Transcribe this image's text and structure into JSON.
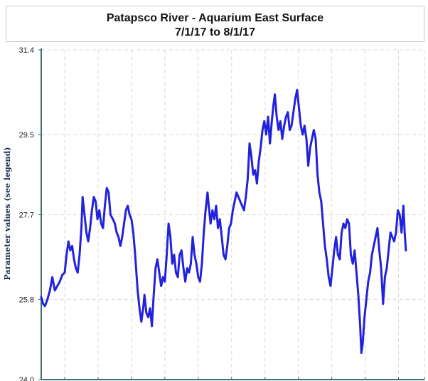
{
  "chart_data": {
    "type": "line",
    "title": "Patapsco River - Aquarium East Surface",
    "subtitle": "7/1/17 to 8/1/17",
    "xlabel": "",
    "ylabel": "Parameter values (see legend)",
    "ylim": [
      24.0,
      31.4
    ],
    "yticks": [
      {
        "value": 24.0,
        "label": "24.0"
      },
      {
        "value": 25.8,
        "label": "25.8"
      },
      {
        "value": 27.7,
        "label": "27.7"
      },
      {
        "value": 29.5,
        "label": "29.5"
      },
      {
        "value": 31.4,
        "label": "31.4"
      }
    ],
    "xlim": [
      0,
      31
    ],
    "x_gridlines": [
      1.9,
      4.6,
      7.3,
      10.0,
      12.7,
      15.4,
      18.1,
      20.8,
      23.5,
      26.2,
      28.9,
      31.0
    ],
    "grid": true,
    "series": [
      {
        "name": "Surface",
        "color": "#2222dd",
        "points": [
          [
            0.0,
            25.85
          ],
          [
            0.15,
            25.7
          ],
          [
            0.3,
            25.65
          ],
          [
            0.5,
            25.8
          ],
          [
            0.7,
            26.0
          ],
          [
            0.9,
            26.3
          ],
          [
            1.1,
            26.0
          ],
          [
            1.3,
            26.1
          ],
          [
            1.5,
            26.2
          ],
          [
            1.7,
            26.35
          ],
          [
            1.9,
            26.4
          ],
          [
            2.05,
            26.8
          ],
          [
            2.2,
            27.1
          ],
          [
            2.35,
            26.9
          ],
          [
            2.5,
            27.0
          ],
          [
            2.65,
            26.7
          ],
          [
            2.8,
            26.5
          ],
          [
            2.95,
            26.4
          ],
          [
            3.1,
            26.8
          ],
          [
            3.25,
            27.4
          ],
          [
            3.35,
            28.1
          ],
          [
            3.5,
            27.7
          ],
          [
            3.65,
            27.3
          ],
          [
            3.8,
            27.1
          ],
          [
            3.95,
            27.4
          ],
          [
            4.1,
            27.8
          ],
          [
            4.25,
            28.1
          ],
          [
            4.4,
            28.0
          ],
          [
            4.55,
            27.6
          ],
          [
            4.7,
            27.8
          ],
          [
            4.85,
            27.5
          ],
          [
            5.0,
            27.4
          ],
          [
            5.15,
            27.9
          ],
          [
            5.3,
            28.3
          ],
          [
            5.45,
            28.2
          ],
          [
            5.6,
            27.7
          ],
          [
            5.8,
            27.6
          ],
          [
            5.95,
            27.5
          ],
          [
            6.1,
            27.3
          ],
          [
            6.25,
            27.2
          ],
          [
            6.4,
            27.0
          ],
          [
            6.55,
            27.2
          ],
          [
            6.7,
            27.5
          ],
          [
            6.85,
            27.8
          ],
          [
            7.0,
            27.9
          ],
          [
            7.15,
            27.7
          ],
          [
            7.3,
            27.6
          ],
          [
            7.45,
            27.3
          ],
          [
            7.6,
            26.8
          ],
          [
            7.8,
            26.0
          ],
          [
            7.95,
            25.6
          ],
          [
            8.1,
            25.3
          ],
          [
            8.25,
            25.6
          ],
          [
            8.35,
            25.9
          ],
          [
            8.5,
            25.5
          ],
          [
            8.65,
            25.4
          ],
          [
            8.8,
            25.6
          ],
          [
            8.95,
            25.2
          ],
          [
            9.1,
            25.9
          ],
          [
            9.25,
            26.5
          ],
          [
            9.4,
            26.7
          ],
          [
            9.55,
            26.4
          ],
          [
            9.7,
            26.1
          ],
          [
            9.85,
            26.3
          ],
          [
            10.0,
            26.2
          ],
          [
            10.15,
            26.8
          ],
          [
            10.3,
            27.5
          ],
          [
            10.45,
            27.2
          ],
          [
            10.6,
            26.6
          ],
          [
            10.75,
            26.8
          ],
          [
            10.9,
            26.4
          ],
          [
            11.05,
            26.3
          ],
          [
            11.2,
            26.8
          ],
          [
            11.35,
            26.9
          ],
          [
            11.5,
            26.5
          ],
          [
            11.65,
            26.2
          ],
          [
            11.8,
            26.5
          ],
          [
            11.95,
            26.4
          ],
          [
            12.1,
            26.6
          ],
          [
            12.25,
            27.2
          ],
          [
            12.4,
            26.8
          ],
          [
            12.55,
            26.6
          ],
          [
            12.7,
            26.3
          ],
          [
            12.85,
            26.2
          ],
          [
            13.0,
            26.6
          ],
          [
            13.15,
            27.3
          ],
          [
            13.3,
            27.8
          ],
          [
            13.45,
            28.2
          ],
          [
            13.55,
            27.9
          ],
          [
            13.7,
            27.5
          ],
          [
            13.85,
            27.8
          ],
          [
            14.0,
            27.6
          ],
          [
            14.15,
            27.9
          ],
          [
            14.3,
            27.4
          ],
          [
            14.45,
            27.6
          ],
          [
            14.6,
            27.2
          ],
          [
            14.75,
            26.8
          ],
          [
            14.9,
            26.7
          ],
          [
            15.05,
            27.0
          ],
          [
            15.2,
            27.4
          ],
          [
            15.35,
            27.5
          ],
          [
            15.5,
            27.8
          ],
          [
            15.65,
            28.0
          ],
          [
            15.8,
            28.2
          ],
          [
            15.95,
            28.1
          ],
          [
            16.1,
            28.0
          ],
          [
            16.25,
            27.9
          ],
          [
            16.4,
            27.8
          ],
          [
            16.55,
            28.1
          ],
          [
            16.7,
            28.5
          ],
          [
            16.85,
            29.3
          ],
          [
            17.0,
            29.0
          ],
          [
            17.15,
            28.6
          ],
          [
            17.3,
            28.7
          ],
          [
            17.45,
            28.4
          ],
          [
            17.6,
            28.9
          ],
          [
            17.75,
            29.2
          ],
          [
            17.9,
            29.6
          ],
          [
            18.05,
            29.8
          ],
          [
            18.2,
            29.5
          ],
          [
            18.35,
            29.9
          ],
          [
            18.5,
            29.3
          ],
          [
            18.65,
            29.8
          ],
          [
            18.8,
            30.2
          ],
          [
            18.9,
            30.4
          ],
          [
            19.05,
            29.9
          ],
          [
            19.2,
            29.6
          ],
          [
            19.35,
            29.8
          ],
          [
            19.5,
            29.4
          ],
          [
            19.65,
            29.7
          ],
          [
            19.8,
            29.9
          ],
          [
            19.95,
            30.0
          ],
          [
            20.1,
            29.6
          ],
          [
            20.25,
            29.7
          ],
          [
            20.4,
            30.0
          ],
          [
            20.55,
            30.3
          ],
          [
            20.7,
            30.5
          ],
          [
            20.85,
            30.1
          ],
          [
            21.0,
            29.7
          ],
          [
            21.15,
            29.5
          ],
          [
            21.3,
            29.7
          ],
          [
            21.45,
            29.4
          ],
          [
            21.6,
            28.8
          ],
          [
            21.75,
            29.2
          ],
          [
            21.9,
            29.4
          ],
          [
            22.05,
            29.6
          ],
          [
            22.2,
            29.4
          ],
          [
            22.35,
            28.6
          ],
          [
            22.5,
            28.2
          ],
          [
            22.65,
            28.0
          ],
          [
            22.8,
            27.5
          ],
          [
            22.95,
            27.0
          ],
          [
            23.1,
            26.7
          ],
          [
            23.25,
            26.3
          ],
          [
            23.4,
            26.1
          ],
          [
            23.55,
            26.5
          ],
          [
            23.7,
            26.9
          ],
          [
            23.85,
            27.2
          ],
          [
            24.0,
            26.8
          ],
          [
            24.15,
            26.7
          ],
          [
            24.3,
            27.3
          ],
          [
            24.45,
            27.5
          ],
          [
            24.6,
            27.4
          ],
          [
            24.75,
            27.6
          ],
          [
            24.9,
            27.5
          ],
          [
            25.05,
            26.8
          ],
          [
            25.2,
            26.6
          ],
          [
            25.35,
            26.9
          ],
          [
            25.5,
            26.4
          ],
          [
            25.65,
            25.9
          ],
          [
            25.8,
            25.2
          ],
          [
            25.9,
            24.6
          ],
          [
            26.0,
            24.8
          ],
          [
            26.15,
            25.4
          ],
          [
            26.3,
            25.8
          ],
          [
            26.45,
            26.2
          ],
          [
            26.6,
            26.4
          ],
          [
            26.75,
            26.8
          ],
          [
            26.9,
            27.0
          ],
          [
            27.05,
            27.2
          ],
          [
            27.2,
            27.4
          ],
          [
            27.35,
            26.9
          ],
          [
            27.5,
            26.5
          ],
          [
            27.65,
            25.7
          ],
          [
            27.8,
            26.3
          ],
          [
            27.95,
            26.5
          ],
          [
            28.1,
            26.9
          ],
          [
            28.25,
            27.3
          ],
          [
            28.4,
            27.2
          ],
          [
            28.55,
            27.1
          ],
          [
            28.7,
            27.3
          ],
          [
            28.85,
            27.8
          ],
          [
            29.0,
            27.7
          ],
          [
            29.15,
            27.3
          ],
          [
            29.3,
            27.9
          ],
          [
            29.4,
            27.3
          ],
          [
            29.5,
            26.9
          ]
        ]
      }
    ]
  },
  "colors": {
    "line": "#2222dd",
    "axis": "#3a6f6f",
    "grid": "#d8d8d8"
  }
}
